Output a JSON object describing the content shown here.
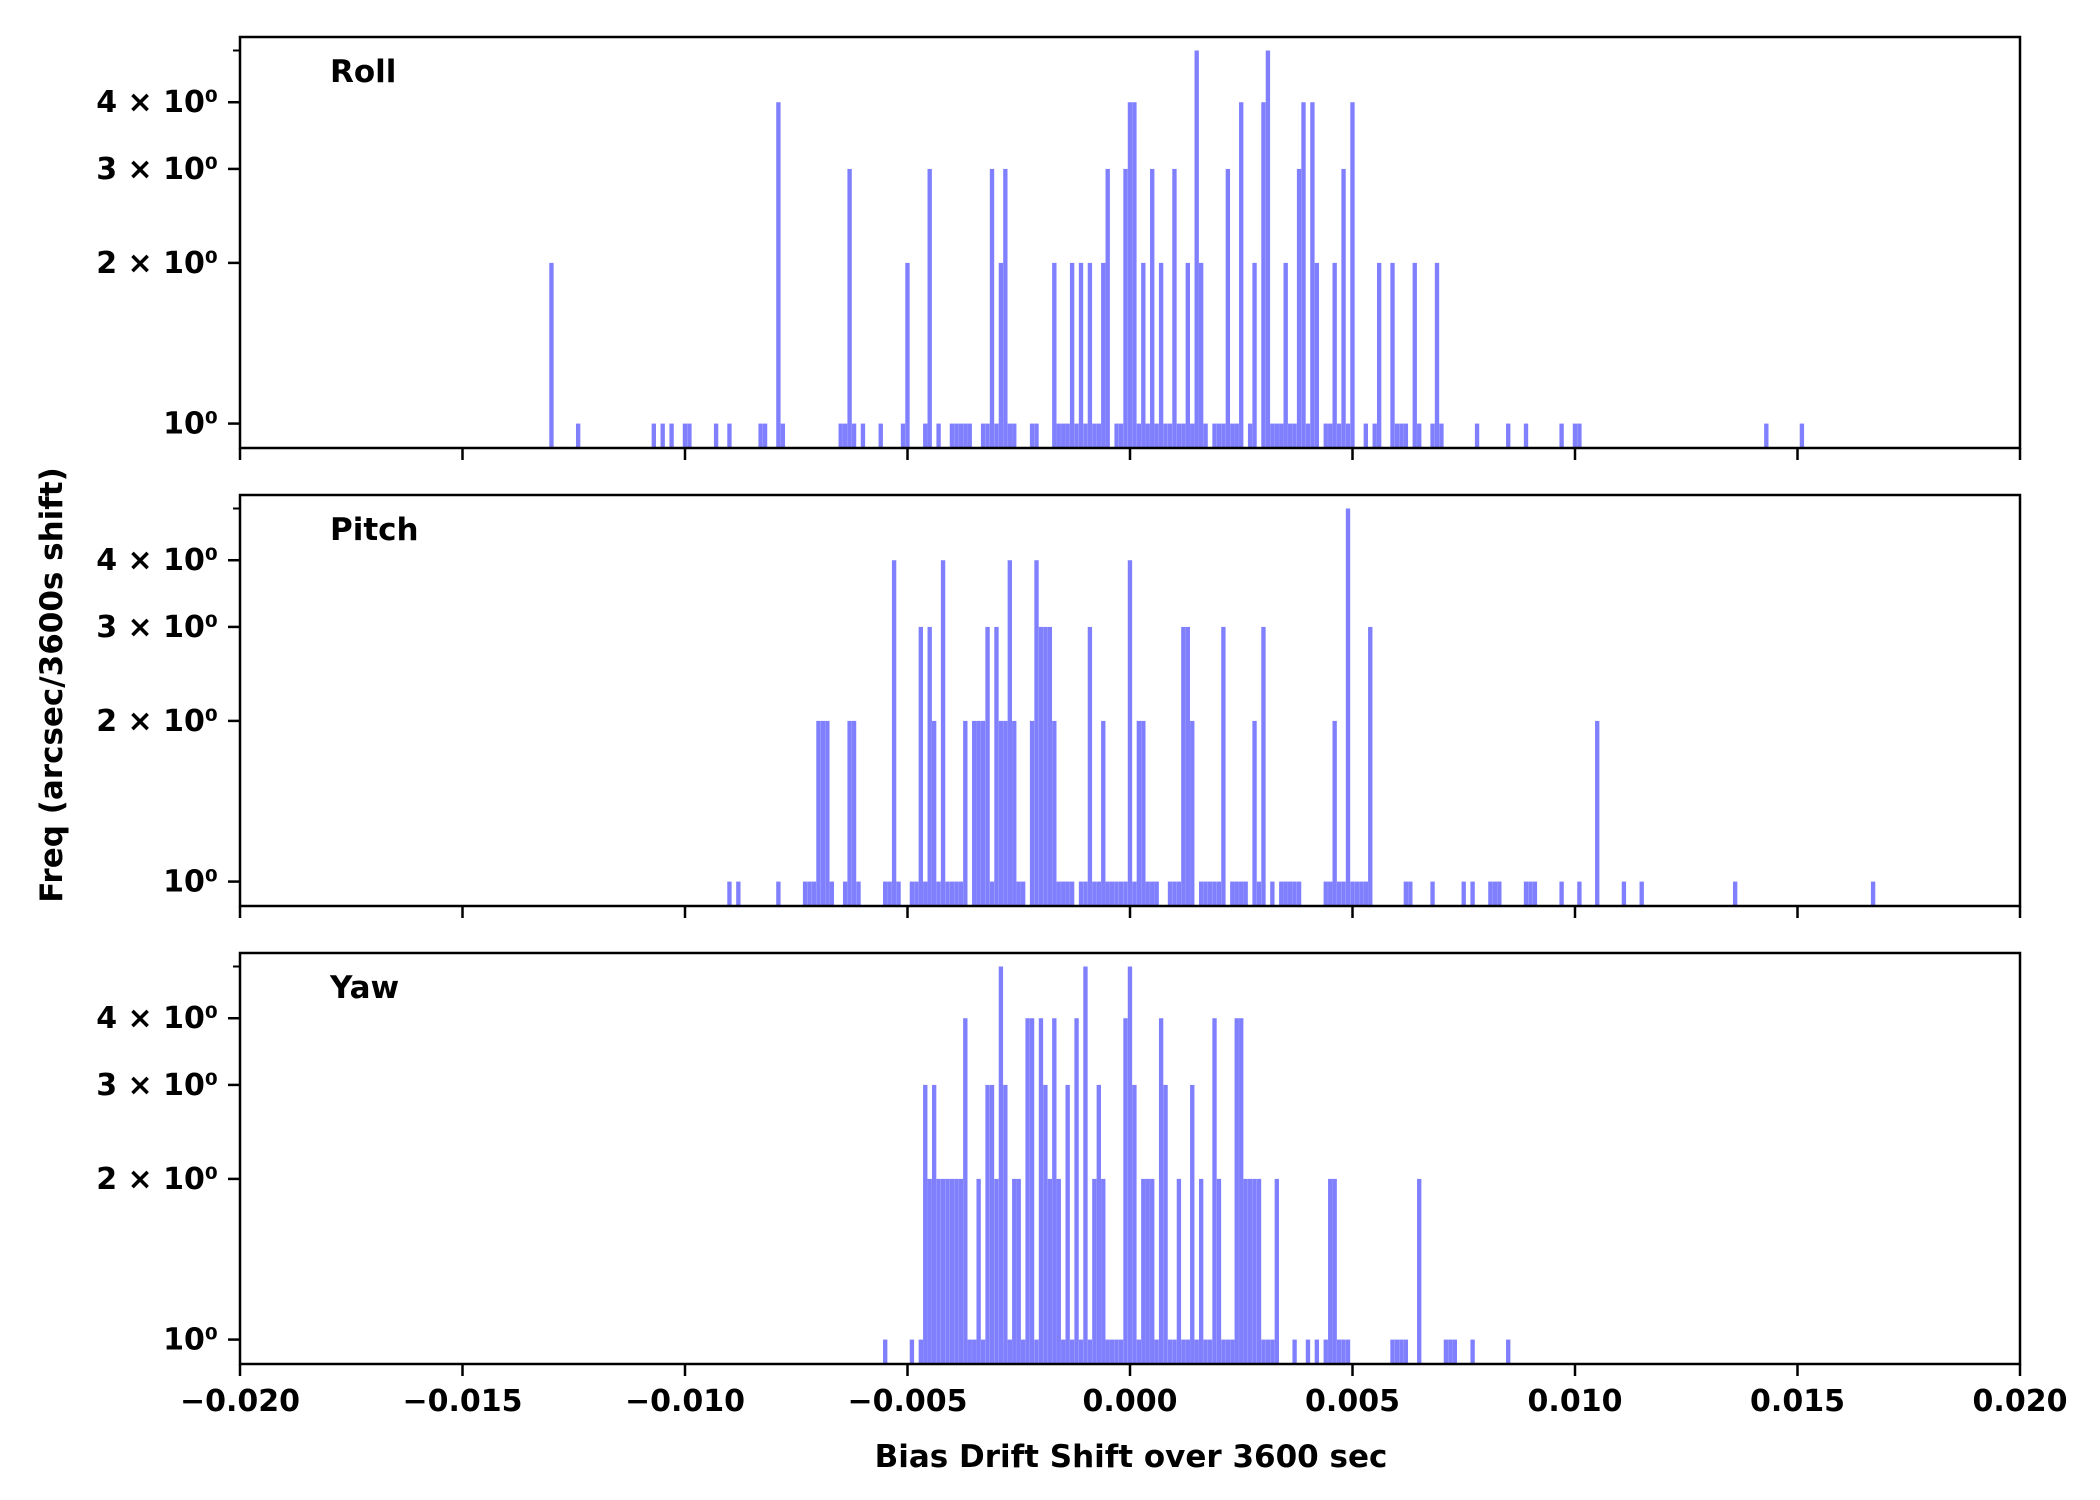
{
  "figure": {
    "xlabel": "Bias Drift Shift over 3600 sec",
    "ylabel": "Freq (arcsec/3600s shift)",
    "bar_color": "#8080ff",
    "axis_color": "#000000"
  },
  "chart_data": [
    {
      "type": "bar",
      "title": "Roll",
      "xlabel": "Bias Drift Shift over 3600 sec",
      "ylabel": "Freq (arcsec/3600s shift)",
      "xlim": [
        -0.02,
        0.02
      ],
      "ylim": [
        0.9,
        5.3
      ],
      "yscale": "log",
      "bin_width": 0.0001,
      "xticks": [
        "-0.020",
        "-0.015",
        "-0.010",
        "-0.005",
        "0.000",
        "0.005",
        "0.010",
        "0.015",
        "0.020"
      ],
      "yticks": [
        {
          "value": 1,
          "label": "10⁰"
        },
        {
          "value": 2,
          "label": "2 × 10⁰"
        },
        {
          "value": 3,
          "label": "3 × 10⁰"
        },
        {
          "value": 4,
          "label": "4 × 10⁰"
        }
      ],
      "x": [
        -0.013,
        -0.0124,
        -0.0107,
        -0.0105,
        -0.0103,
        -0.01,
        -0.0099,
        -0.0093,
        -0.009,
        -0.0083,
        -0.0082,
        -0.0079,
        -0.0078,
        -0.0065,
        -0.0064,
        -0.0063,
        -0.0062,
        -0.006,
        -0.0056,
        -0.0051,
        -0.005,
        -0.0046,
        -0.0045,
        -0.0043,
        -0.004,
        -0.0039,
        -0.0038,
        -0.0037,
        -0.0036,
        -0.0033,
        -0.0032,
        -0.0031,
        -0.003,
        -0.0029,
        -0.0028,
        -0.0027,
        -0.0026,
        -0.0022,
        -0.0021,
        -0.0017,
        -0.0016,
        -0.0015,
        -0.0014,
        -0.0013,
        -0.0012,
        -0.0011,
        -0.001,
        -0.0009,
        -0.0008,
        -0.0007,
        -0.0006,
        -0.0005,
        -0.0003,
        -0.0002,
        -0.0001,
        0.0,
        0.0001,
        0.0002,
        0.0003,
        0.0004,
        0.0005,
        0.0006,
        0.0007,
        0.0008,
        0.0009,
        0.001,
        0.0011,
        0.0012,
        0.0013,
        0.0014,
        0.0015,
        0.0016,
        0.0017,
        0.0019,
        0.002,
        0.0021,
        0.0022,
        0.0023,
        0.0024,
        0.0025,
        0.0027,
        0.0028,
        0.003,
        0.0031,
        0.0032,
        0.0033,
        0.0034,
        0.0035,
        0.0036,
        0.0037,
        0.0038,
        0.0039,
        0.004,
        0.0041,
        0.0042,
        0.0044,
        0.0045,
        0.0046,
        0.0047,
        0.0048,
        0.0049,
        0.005,
        0.0053,
        0.0055,
        0.0056,
        0.0059,
        0.006,
        0.0061,
        0.0062,
        0.0064,
        0.0065,
        0.0068,
        0.0069,
        0.007,
        0.0078,
        0.0085,
        0.0089,
        0.0097,
        0.01,
        0.0101,
        0.0143,
        0.0151
      ],
      "values": [
        2,
        1,
        1,
        1,
        1,
        1,
        1,
        1,
        1,
        1,
        1,
        4,
        1,
        1,
        1,
        3,
        1,
        1,
        1,
        1,
        2,
        1,
        3,
        1,
        1,
        1,
        1,
        1,
        1,
        1,
        1,
        3,
        1,
        2,
        3,
        1,
        1,
        1,
        1,
        2,
        1,
        1,
        1,
        2,
        1,
        2,
        1,
        2,
        1,
        1,
        2,
        3,
        1,
        1,
        3,
        4,
        4,
        1,
        2,
        1,
        3,
        1,
        2,
        1,
        1,
        3,
        1,
        1,
        2,
        1,
        5,
        2,
        1,
        1,
        1,
        1,
        3,
        1,
        1,
        4,
        1,
        2,
        4,
        5,
        1,
        1,
        1,
        2,
        1,
        1,
        3,
        4,
        1,
        4,
        2,
        1,
        1,
        2,
        1,
        3,
        1,
        4,
        1,
        1,
        2,
        2,
        1,
        1,
        1,
        2,
        1,
        1,
        2,
        1,
        1,
        1,
        1,
        1,
        1,
        1,
        1,
        1
      ]
    },
    {
      "type": "bar",
      "title": "Pitch",
      "xlabel": "Bias Drift Shift over 3600 sec",
      "ylabel": "Freq (arcsec/3600s shift)",
      "xlim": [
        -0.02,
        0.02
      ],
      "ylim": [
        0.9,
        5.3
      ],
      "yscale": "log",
      "bin_width": 0.0001,
      "xticks": [
        "-0.020",
        "-0.015",
        "-0.010",
        "-0.005",
        "0.000",
        "0.005",
        "0.010",
        "0.015",
        "0.020"
      ],
      "yticks": [
        {
          "value": 1,
          "label": "10⁰"
        },
        {
          "value": 2,
          "label": "2 × 10⁰"
        },
        {
          "value": 3,
          "label": "3 × 10⁰"
        },
        {
          "value": 4,
          "label": "4 × 10⁰"
        }
      ],
      "x": [
        -0.009,
        -0.0088,
        -0.0079,
        -0.0073,
        -0.0072,
        -0.0071,
        -0.007,
        -0.0069,
        -0.0068,
        -0.0067,
        -0.0064,
        -0.0063,
        -0.0062,
        -0.0061,
        -0.0055,
        -0.0054,
        -0.0053,
        -0.0052,
        -0.0049,
        -0.0048,
        -0.0047,
        -0.0046,
        -0.0045,
        -0.0044,
        -0.0043,
        -0.0042,
        -0.0041,
        -0.004,
        -0.0039,
        -0.0038,
        -0.0037,
        -0.0035,
        -0.0034,
        -0.0033,
        -0.0032,
        -0.0031,
        -0.003,
        -0.0029,
        -0.0028,
        -0.0027,
        -0.0026,
        -0.0025,
        -0.0024,
        -0.0022,
        -0.0021,
        -0.002,
        -0.0019,
        -0.0018,
        -0.0017,
        -0.0016,
        -0.0015,
        -0.0014,
        -0.0013,
        -0.0011,
        -0.001,
        -0.0009,
        -0.0008,
        -0.0007,
        -0.0006,
        -0.0005,
        -0.0004,
        -0.0003,
        -0.0002,
        -0.0001,
        0.0,
        0.0001,
        0.0002,
        0.0003,
        0.0004,
        0.0005,
        0.0006,
        0.0009,
        0.001,
        0.0011,
        0.0012,
        0.0013,
        0.0014,
        0.0016,
        0.0017,
        0.0018,
        0.0019,
        0.002,
        0.0021,
        0.0023,
        0.0024,
        0.0025,
        0.0026,
        0.0028,
        0.0029,
        0.003,
        0.0032,
        0.0034,
        0.0035,
        0.0036,
        0.0037,
        0.0038,
        0.0044,
        0.0045,
        0.0046,
        0.0047,
        0.0048,
        0.0049,
        0.005,
        0.0051,
        0.0052,
        0.0053,
        0.0054,
        0.0062,
        0.0063,
        0.0068,
        0.0075,
        0.0077,
        0.0081,
        0.0082,
        0.0083,
        0.0089,
        0.009,
        0.0091,
        0.0097,
        0.0101,
        0.0105,
        0.0111,
        0.0115,
        0.0136,
        0.0167
      ],
      "values": [
        1,
        1,
        1,
        1,
        1,
        1,
        2,
        2,
        2,
        1,
        1,
        2,
        2,
        1,
        1,
        1,
        4,
        1,
        1,
        1,
        3,
        1,
        3,
        2,
        1,
        4,
        1,
        1,
        1,
        1,
        2,
        2,
        2,
        2,
        3,
        1,
        3,
        2,
        2,
        4,
        2,
        1,
        1,
        2,
        4,
        3,
        3,
        3,
        2,
        1,
        1,
        1,
        1,
        1,
        1,
        3,
        1,
        1,
        2,
        1,
        1,
        1,
        1,
        1,
        4,
        1,
        2,
        2,
        1,
        1,
        1,
        1,
        1,
        1,
        3,
        3,
        2,
        1,
        1,
        1,
        1,
        1,
        3,
        1,
        1,
        1,
        1,
        2,
        1,
        3,
        1,
        1,
        1,
        1,
        1,
        1,
        1,
        1,
        2,
        1,
        1,
        5,
        1,
        1,
        1,
        1,
        3,
        1,
        1,
        1,
        1,
        1,
        1,
        1,
        1,
        1,
        1,
        1,
        1,
        1,
        2,
        1,
        1,
        1,
        1
      ]
    },
    {
      "type": "bar",
      "title": "Yaw",
      "xlabel": "Bias Drift Shift over 3600 sec",
      "ylabel": "Freq (arcsec/3600s shift)",
      "xlim": [
        -0.02,
        0.02
      ],
      "ylim": [
        0.9,
        5.3
      ],
      "yscale": "log",
      "bin_width": 0.0001,
      "xticks": [
        "-0.020",
        "-0.015",
        "-0.010",
        "-0.005",
        "0.000",
        "0.005",
        "0.010",
        "0.015",
        "0.020"
      ],
      "yticks": [
        {
          "value": 1,
          "label": "10⁰"
        },
        {
          "value": 2,
          "label": "2 × 10⁰"
        },
        {
          "value": 3,
          "label": "3 × 10⁰"
        },
        {
          "value": 4,
          "label": "4 × 10⁰"
        }
      ],
      "x": [
        -0.0055,
        -0.0049,
        -0.0047,
        -0.0046,
        -0.0045,
        -0.0044,
        -0.0043,
        -0.0042,
        -0.0041,
        -0.004,
        -0.0039,
        -0.0038,
        -0.0037,
        -0.0036,
        -0.0035,
        -0.0034,
        -0.0033,
        -0.0032,
        -0.0031,
        -0.003,
        -0.0029,
        -0.0028,
        -0.0027,
        -0.0026,
        -0.0025,
        -0.0024,
        -0.0023,
        -0.0022,
        -0.0021,
        -0.002,
        -0.0019,
        -0.0018,
        -0.0017,
        -0.0016,
        -0.0015,
        -0.0014,
        -0.0013,
        -0.0012,
        -0.0011,
        -0.001,
        -0.0009,
        -0.0008,
        -0.0007,
        -0.0006,
        -0.0005,
        -0.0004,
        -0.0003,
        -0.0002,
        -0.0001,
        0.0,
        0.0001,
        0.0002,
        0.0003,
        0.0004,
        0.0005,
        0.0006,
        0.0007,
        0.0008,
        0.0009,
        0.001,
        0.0011,
        0.0012,
        0.0013,
        0.0014,
        0.0015,
        0.0016,
        0.0017,
        0.0018,
        0.0019,
        0.002,
        0.0021,
        0.0022,
        0.0023,
        0.0024,
        0.0025,
        0.0026,
        0.0027,
        0.0028,
        0.0029,
        0.003,
        0.0031,
        0.0032,
        0.0033,
        0.0037,
        0.004,
        0.0042,
        0.0044,
        0.0045,
        0.0046,
        0.0047,
        0.0048,
        0.0049,
        0.0059,
        0.006,
        0.0061,
        0.0062,
        0.0065,
        0.0071,
        0.0072,
        0.0073,
        0.0077,
        0.0085
      ],
      "values": [
        1,
        1,
        1,
        3,
        2,
        3,
        2,
        2,
        2,
        2,
        2,
        2,
        4,
        1,
        1,
        2,
        1,
        3,
        3,
        2,
        5,
        3,
        1,
        2,
        2,
        1,
        4,
        4,
        1,
        4,
        3,
        2,
        4,
        2,
        1,
        3,
        1,
        4,
        1,
        5,
        1,
        2,
        3,
        2,
        1,
        1,
        1,
        1,
        4,
        5,
        3,
        1,
        2,
        2,
        2,
        1,
        4,
        3,
        1,
        1,
        2,
        1,
        1,
        3,
        1,
        2,
        1,
        1,
        4,
        2,
        1,
        1,
        1,
        4,
        4,
        2,
        2,
        2,
        2,
        1,
        1,
        1,
        2,
        1,
        1,
        1,
        1,
        2,
        2,
        1,
        1,
        1,
        1,
        1,
        1,
        1,
        2,
        1,
        1,
        1,
        1,
        1
      ]
    }
  ]
}
